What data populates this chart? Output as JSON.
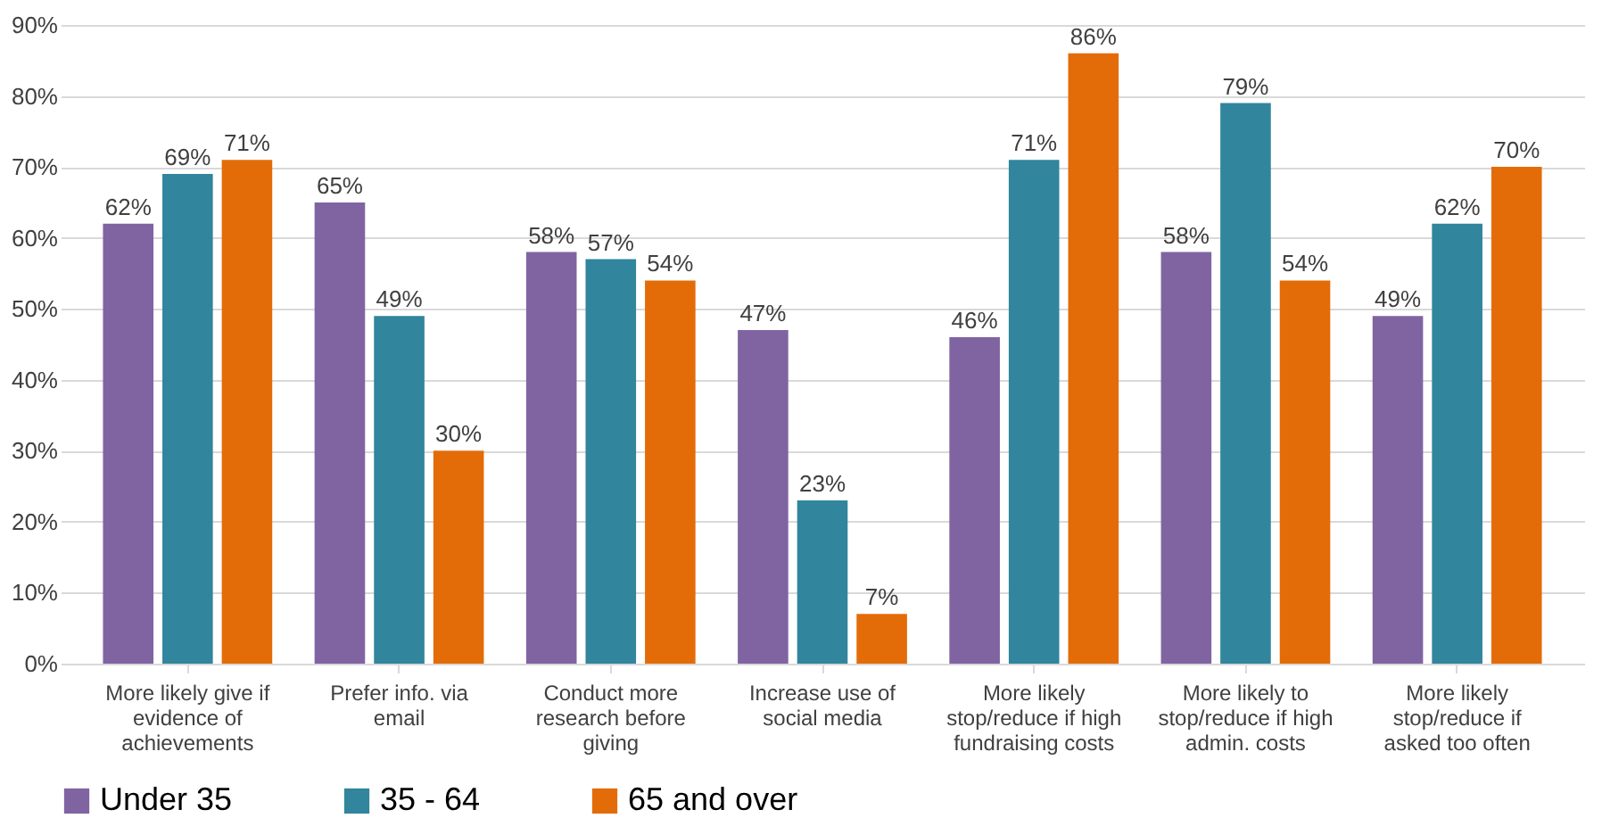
{
  "chart_data": {
    "type": "bar",
    "categories": [
      "More likely give if evidence of achievements",
      "Prefer info. via email",
      "Conduct more research before giving",
      "Increase use of social media",
      "More likely stop/reduce if high fundraising costs",
      "More likely to stop/reduce if high admin. costs",
      "More likely stop/reduce if asked too often"
    ],
    "series": [
      {
        "name": "Under 35",
        "color": "#8064a2",
        "values": [
          62,
          65,
          58,
          47,
          46,
          58,
          49
        ],
        "value_labels": [
          "62%",
          "65%",
          "58%",
          "47%",
          "46%",
          "58%",
          "49%"
        ]
      },
      {
        "name": "35 - 64",
        "color": "#31859c",
        "values": [
          69,
          49,
          57,
          23,
          71,
          79,
          62
        ],
        "value_labels": [
          "69%",
          "49%",
          "57%",
          "23%",
          "71%",
          "79%",
          "62%"
        ]
      },
      {
        "name": "65 and over",
        "color": "#e36c09",
        "values": [
          71,
          30,
          54,
          7,
          86,
          54,
          70
        ],
        "value_labels": [
          "71%",
          "30%",
          "54%",
          "7%",
          "86%",
          "54%",
          "70%"
        ]
      }
    ],
    "ylim": [
      0,
      90
    ],
    "yticks": [
      {
        "value": 0,
        "label": "0%"
      },
      {
        "value": 10,
        "label": "10%"
      },
      {
        "value": 20,
        "label": "20%"
      },
      {
        "value": 30,
        "label": "30%"
      },
      {
        "value": 40,
        "label": "40%"
      },
      {
        "value": 50,
        "label": "50%"
      },
      {
        "value": 60,
        "label": "60%"
      },
      {
        "value": 70,
        "label": "70%"
      },
      {
        "value": 80,
        "label": "80%"
      },
      {
        "value": 90,
        "label": "90%"
      }
    ],
    "grid": "y",
    "legend": "bottom"
  }
}
